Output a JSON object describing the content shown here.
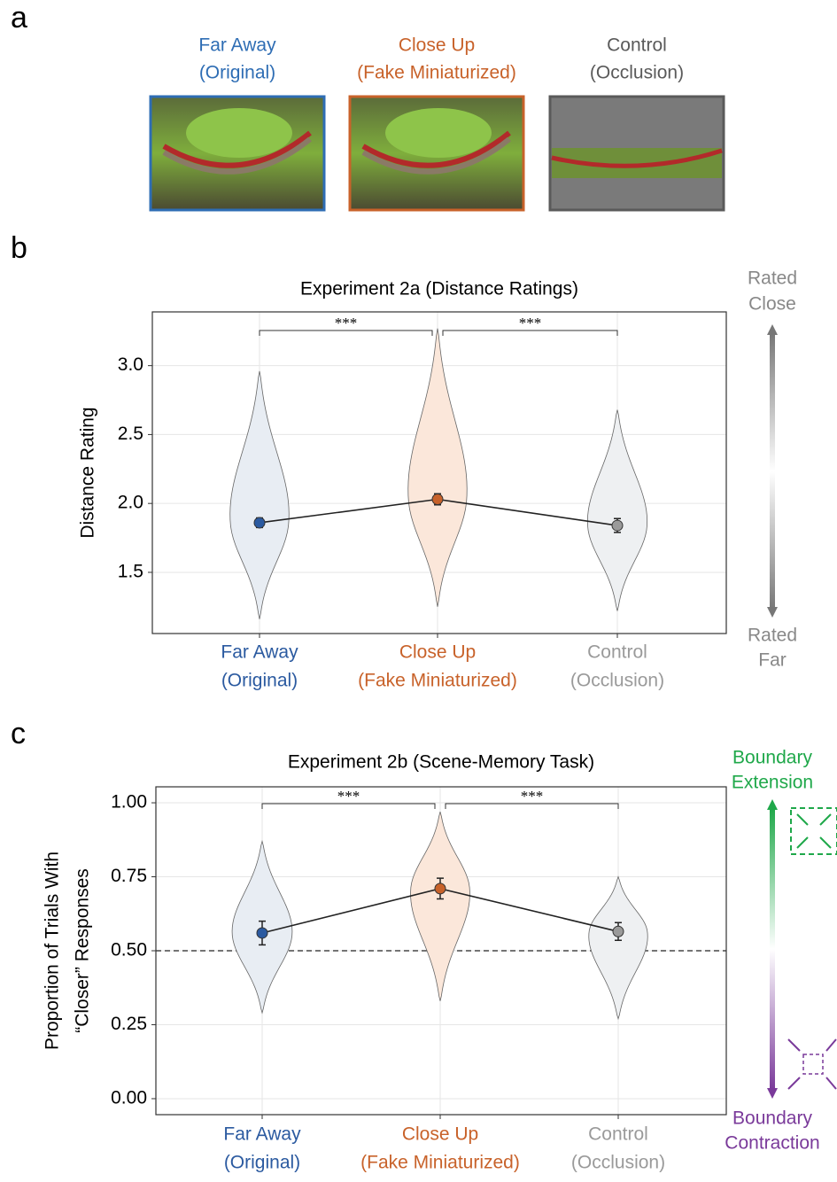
{
  "panel_a": {
    "label": "a",
    "images": [
      {
        "title": [
          "Far Away",
          "(Original)"
        ],
        "color": "#2e6db4"
      },
      {
        "title": [
          "Close Up",
          "(Fake Miniaturized)"
        ],
        "color": "#c8622a"
      },
      {
        "title": [
          "Control",
          "(Occlusion)"
        ],
        "color": "#5a5a5a"
      }
    ]
  },
  "chart_data": [
    {
      "type": "violin",
      "panel": "b",
      "title": "Experiment 2a (Distance Ratings)",
      "ylabel": [
        "Distance Rating"
      ],
      "categories": [
        [
          "Far Away",
          "(Original)"
        ],
        [
          "Close Up",
          "(Fake Miniaturized)"
        ],
        [
          "Control",
          "(Occlusion)"
        ]
      ],
      "category_colors": [
        "#2b5aa0",
        "#c8622a",
        "#9a9a9a"
      ],
      "violin_colors": [
        "#e8edf3",
        "#fbe7da",
        "#eef0f2"
      ],
      "values": [
        1.86,
        2.03,
        1.84
      ],
      "errors": [
        0.035,
        0.04,
        0.05
      ],
      "violin_ranges": [
        [
          1.16,
          2.96
        ],
        [
          1.25,
          3.27
        ],
        [
          1.22,
          2.68
        ]
      ],
      "significance": [
        "***",
        "***"
      ],
      "ylim": [
        1.056,
        3.39
      ],
      "yticks": [
        {
          "value": 1.5,
          "label": "1.5"
        },
        {
          "value": 2,
          "label": "2.0"
        },
        {
          "value": 2.5,
          "label": "2.5"
        },
        {
          "value": 3,
          "label": "3.0"
        }
      ],
      "grid": true,
      "side_labels": {
        "top": [
          "Rated",
          "Close"
        ],
        "bottom": [
          "Rated",
          "Far"
        ]
      }
    },
    {
      "type": "violin",
      "panel": "c",
      "title": "Experiment 2b (Scene-Memory Task)",
      "ylabel": [
        "Proportion of Trials With",
        "“Closer” Responses"
      ],
      "categories": [
        [
          "Far Away",
          "(Original)"
        ],
        [
          "Close Up",
          "(Fake Miniaturized)"
        ],
        [
          "Control",
          "(Occlusion)"
        ]
      ],
      "category_colors": [
        "#2b5aa0",
        "#c8622a",
        "#9a9a9a"
      ],
      "violin_colors": [
        "#e8edf3",
        "#fbe7da",
        "#eef0f2"
      ],
      "values": [
        0.56,
        0.71,
        0.565
      ],
      "errors": [
        0.04,
        0.035,
        0.03
      ],
      "violin_ranges": [
        [
          0.29,
          0.87
        ],
        [
          0.33,
          0.97
        ],
        [
          0.27,
          0.75
        ]
      ],
      "significance": [
        "***",
        "***"
      ],
      "reference_line": 0.5,
      "ylim": [
        -0.054,
        1.054
      ],
      "yticks": [
        {
          "value": 0,
          "label": "0.00"
        },
        {
          "value": 0.25,
          "label": "0.25"
        },
        {
          "value": 0.5,
          "label": "0.50"
        },
        {
          "value": 0.75,
          "label": "0.75"
        },
        {
          "value": 1,
          "label": "1.00"
        }
      ],
      "grid": true,
      "side_labels": {
        "top": [
          "Boundary",
          "Extension"
        ],
        "bottom": [
          "Boundary",
          "Contraction"
        ]
      }
    }
  ]
}
